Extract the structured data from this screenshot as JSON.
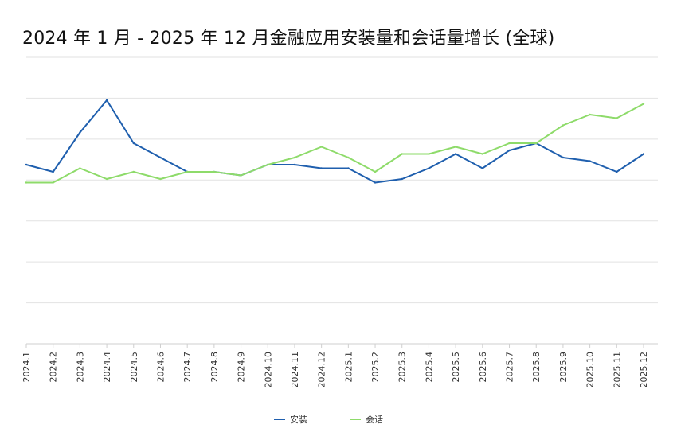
{
  "chart_data": {
    "type": "line",
    "title": "2024 年 1 月 - 2025 年 12 月金融应用安装量和会话量增长 (全球)",
    "categories": [
      "2024.1",
      "2024.2",
      "2024.3",
      "2024.4",
      "2024.5",
      "2024.6",
      "2024.7",
      "2024.8",
      "2024.9",
      "2024.10",
      "2024.11",
      "2024.12",
      "2025.1",
      "2025.2",
      "2025.3",
      "2025.4",
      "2025.5",
      "2025.6",
      "2025.7",
      "2025.8",
      "2025.9",
      "2025.10",
      "2025.11",
      "2025.12"
    ],
    "series": [
      {
        "name": "安装",
        "color": "#1f5fae",
        "values": [
          5.0,
          4.8,
          5.9,
          6.8,
          5.6,
          5.2,
          4.8,
          4.8,
          4.7,
          5.0,
          5.0,
          4.9,
          4.9,
          4.5,
          4.6,
          4.9,
          5.3,
          4.9,
          5.4,
          5.6,
          5.2,
          5.1,
          4.8,
          5.3
        ]
      },
      {
        "name": "会话",
        "color": "#8edb6a",
        "values": [
          4.5,
          4.5,
          4.9,
          4.6,
          4.8,
          4.6,
          4.8,
          4.8,
          4.7,
          5.0,
          5.2,
          5.5,
          5.2,
          4.8,
          5.3,
          5.3,
          5.5,
          5.3,
          5.6,
          5.6,
          6.1,
          6.4,
          6.3,
          6.7
        ]
      }
    ],
    "ylim": [
      0,
      8
    ],
    "y_gridlines": 6,
    "y_tick_labels": "none",
    "grid": true,
    "legend": "bottom-center",
    "xlabel": "",
    "ylabel": ""
  }
}
